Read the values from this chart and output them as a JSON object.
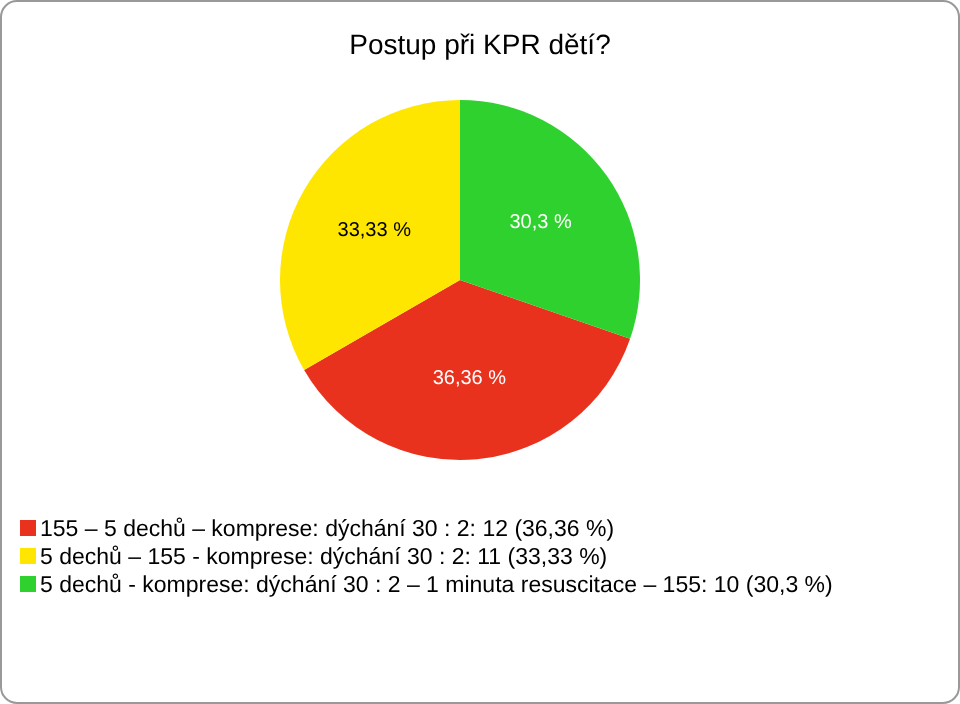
{
  "chart_data": {
    "type": "pie",
    "title": "Postup při KPR dětí?",
    "categories": [
      "155 – 5 dechů – komprese: dýchání 30 : 2: 12 (36,36 %)",
      "5 dechů – 155 - komprese: dýchání 30 : 2: 11 (33,33 %)",
      "5 dechů - komprese: dýchání 30 : 2 – 1 minuta resuscitace – 155: 10 (30,3 %)"
    ],
    "values": [
      36.36,
      33.33,
      30.3
    ],
    "colors": [
      "#e8321e",
      "#ffe600",
      "#2ed12e"
    ],
    "value_labels": [
      "36,36 %",
      "33,33 %",
      "30,3 %"
    ],
    "legend": "bottom"
  }
}
